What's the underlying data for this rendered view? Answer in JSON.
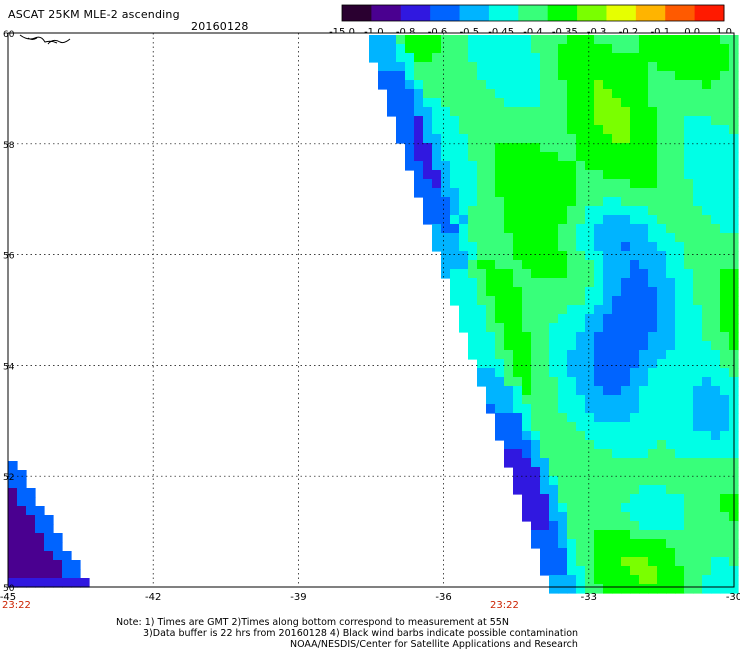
{
  "header": {
    "title": "ASCAT 25KM MLE-2 ascending",
    "date": "20160128"
  },
  "color_scale": {
    "labels": [
      "-15.0",
      "-1.0",
      "-0.8",
      "-0.6",
      "-0.5",
      "-0.45",
      "-0.4",
      "-0.35",
      "-0.3",
      "-0.2",
      "-0.1",
      "0.0",
      "1.0"
    ],
    "colors": [
      "#2a0030",
      "#4a0090",
      "#3018e0",
      "#0064ff",
      "#00b4ff",
      "#00ffe6",
      "#38ff7a",
      "#00ff00",
      "#7aff00",
      "#e6ff00",
      "#ffb400",
      "#ff5a00",
      "#ff1a00"
    ]
  },
  "map": {
    "x_ticks": [
      "-45",
      "-42",
      "-39",
      "-36",
      "-33",
      "-30"
    ],
    "y_ticks": [
      "50",
      "52",
      "54",
      "56",
      "58",
      "60"
    ],
    "time_labels": [
      "23:22",
      "23:22"
    ]
  },
  "notes": [
    "Note: 1) Times are GMT 2)Times along bottom correspond to measurement at 55N",
    "3)Data buffer is 22 hrs from 20160128 4) Black wind barbs indicate possible contamination",
    "NOAA/NESDIS/Center for Satellite Applications and Research"
  ]
}
